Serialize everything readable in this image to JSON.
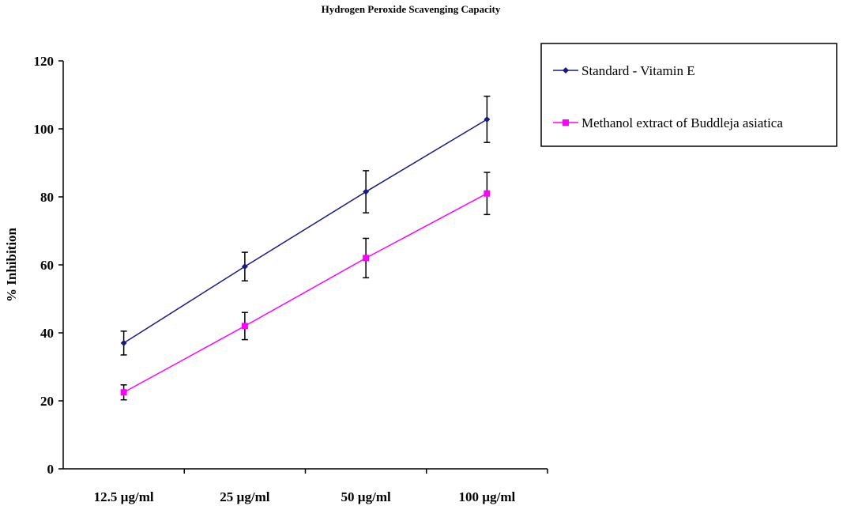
{
  "chart_data": {
    "type": "line",
    "title": "Hydrogen Peroxide Scavenging Capacity",
    "xlabel": "",
    "ylabel": "% Inhibition",
    "ylim": [
      0,
      120
    ],
    "yticks": [
      "0",
      "20",
      "40",
      "60",
      "80",
      "100",
      "120"
    ],
    "categories": [
      "12.5 µg/ml",
      "25 µg/ml",
      "50 µg/ml",
      "100 µg/ml"
    ],
    "grid": false,
    "legend_position": "top-right",
    "series": [
      {
        "name": "Standard - Vitamin E",
        "color": "#1a1a80",
        "marker": "diamond",
        "values": [
          37,
          59.5,
          81.5,
          102.8
        ],
        "error": [
          3.5,
          4.2,
          6.2,
          6.8
        ]
      },
      {
        "name": "Methanol extract of Buddleja asiatica",
        "color": "#ff00ff",
        "marker": "square",
        "values": [
          22.5,
          42,
          62,
          81
        ],
        "error": [
          2.2,
          4.0,
          5.8,
          6.2
        ]
      }
    ]
  }
}
